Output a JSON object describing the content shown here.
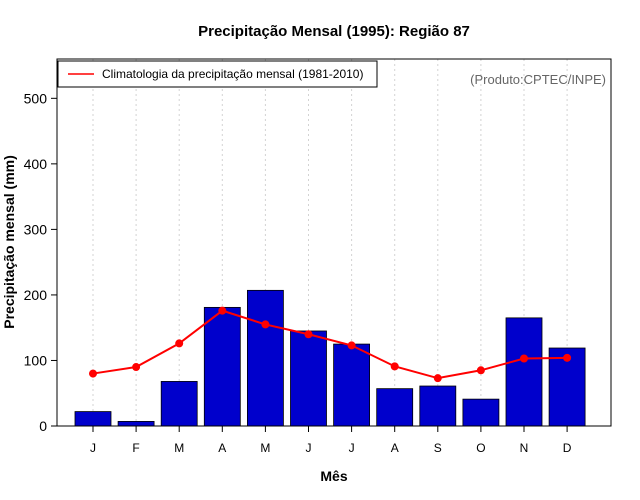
{
  "chart_data": {
    "type": "bar",
    "title": "Precipitação Mensal (1995): Região 87",
    "xlabel": "Mês",
    "ylabel": "Precipitação mensal (mm)",
    "ylim": [
      0,
      560
    ],
    "yticks": [
      0,
      100,
      200,
      300,
      400,
      500
    ],
    "categories": [
      "J",
      "F",
      "M",
      "A",
      "M",
      "J",
      "J",
      "A",
      "S",
      "O",
      "N",
      "D"
    ],
    "series": [
      {
        "name": "Precipitação mensal (1995)",
        "type": "bar",
        "color": "#0000cc",
        "values": [
          22,
          7,
          68,
          181,
          207,
          145,
          125,
          57,
          61,
          41,
          165,
          119
        ]
      },
      {
        "name": "Climatologia da precipitação mensal (1981-2010)",
        "type": "line",
        "color": "#ff0000",
        "values": [
          80,
          90,
          126,
          176,
          155,
          140,
          123,
          91,
          73,
          85,
          103,
          104
        ]
      }
    ],
    "grid": "vertical-dotted",
    "legend": {
      "position": "top-left",
      "entries": [
        "Climatologia da precipitação mensal (1981-2010)"
      ]
    },
    "annotation": "(Produto:CPTEC/INPE)"
  }
}
